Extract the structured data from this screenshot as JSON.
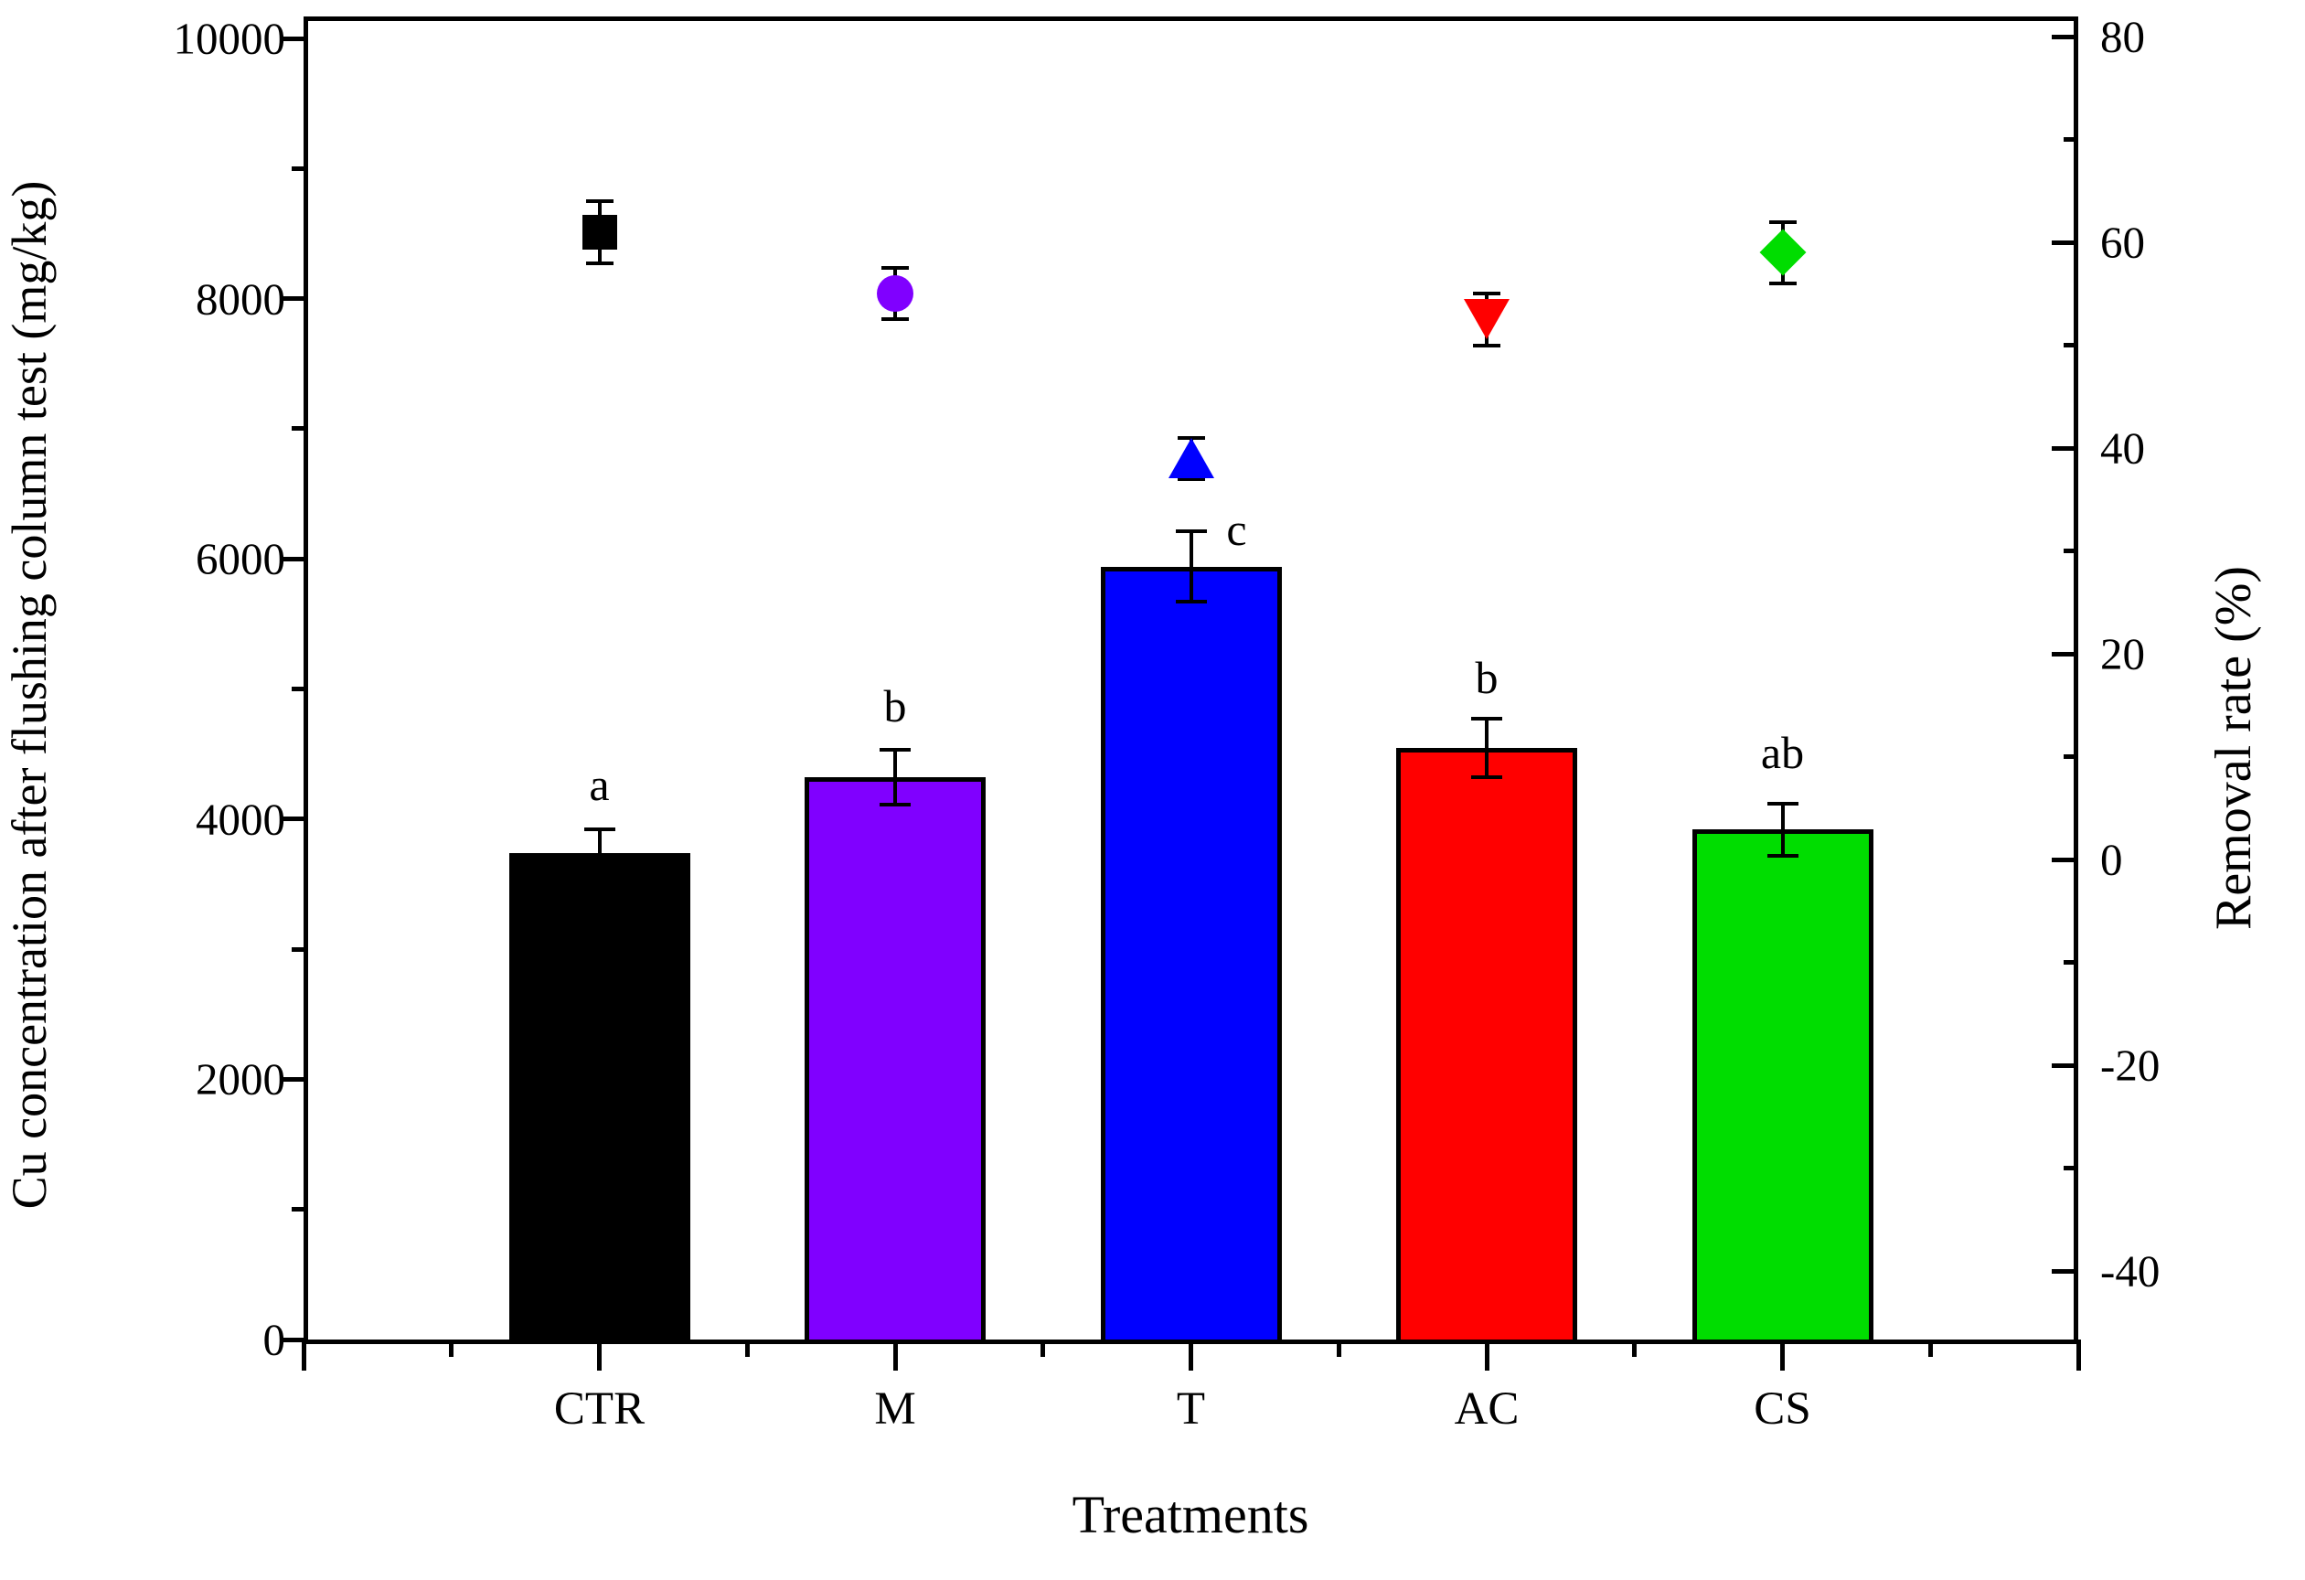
{
  "chart_data": {
    "type": "bar",
    "categories": [
      "CTR",
      "M",
      "T",
      "AC",
      "CS"
    ],
    "xlabel": "Treatments",
    "ylabel_left": "Cu concentration after flushing column test (mg/kg)",
    "ylabel_right": "Removal rate (%)",
    "left_axis": {
      "min": 0,
      "max": 10000,
      "major_tick_labels": [
        "0",
        "2000",
        "4000",
        "6000",
        "8000",
        "10000"
      ],
      "major_tick_values": [
        0,
        2000,
        4000,
        6000,
        8000,
        10000
      ],
      "minor_tick_values": [
        1000,
        3000,
        5000,
        7000,
        9000
      ],
      "grid": false
    },
    "right_axis": {
      "major_tick_labels": [
        "80",
        "60",
        "40",
        "20",
        "0",
        "-20",
        "-40"
      ],
      "major_tick_values": [
        80,
        60,
        40,
        20,
        0,
        -20,
        -40
      ],
      "minor_tick_values": [
        70,
        50,
        30,
        10,
        -10,
        -30
      ],
      "grid": false
    },
    "series": [
      {
        "name": "Cu concentration after flushing column test",
        "plot": "bar",
        "axis": "left",
        "values": [
          3740,
          4320,
          5940,
          4550,
          3920
        ],
        "errors": [
          180,
          210,
          270,
          225,
          200
        ],
        "fill_colors": [
          "#000000",
          "#8000ff",
          "#0000ff",
          "#ff0000",
          "#00dd00"
        ],
        "sig_labels": [
          "a",
          "b",
          "c",
          "b",
          "ab"
        ],
        "sig_label_offsets": [
          [
            0,
            -49
          ],
          [
            0,
            -48
          ],
          [
            50,
            -2
          ],
          [
            0,
            -45
          ],
          [
            0,
            -56
          ]
        ]
      },
      {
        "name": "Removal rate",
        "plot": "scatter",
        "axis": "right",
        "values": [
          61,
          55,
          39,
          52.5,
          59
        ],
        "errors": [
          3,
          2.5,
          2,
          2.5,
          3
        ],
        "markers": [
          "square",
          "circle",
          "triangle-up",
          "triangle-down",
          "diamond"
        ],
        "colors": [
          "#000000",
          "#8000ff",
          "#0000ff",
          "#ff0000",
          "#00dd00"
        ]
      }
    ],
    "legend": null
  }
}
